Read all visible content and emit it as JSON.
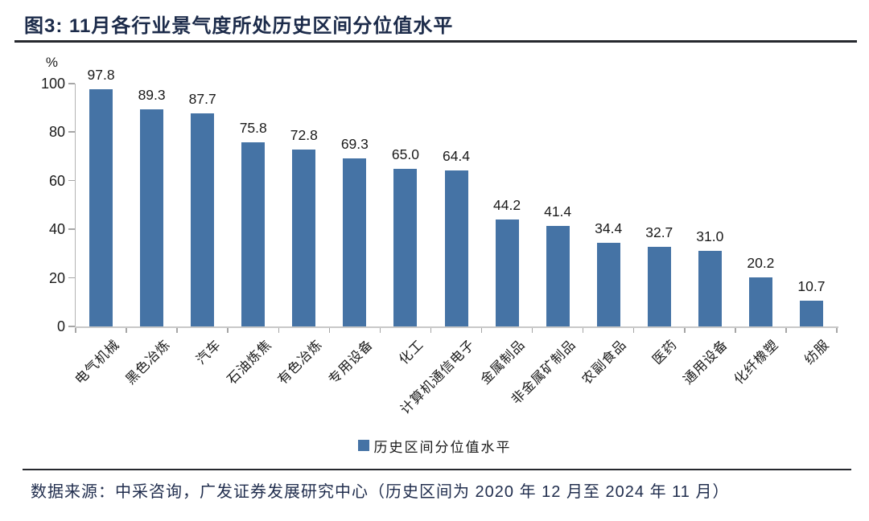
{
  "figure": {
    "title": "图3:  11月各行业景气度所处历史区间分位值水平",
    "source_note": "数据来源：中采咨询，广发证券发展研究中心（历史区间为 2020 年 12 月至 2024 年 11 月）"
  },
  "chart_data": {
    "type": "bar",
    "title": "11月各行业景气度所处历史区间分位值水平",
    "unit": "%",
    "categories": [
      "电气机械",
      "黑色冶炼",
      "汽车",
      "石油炼焦",
      "有色冶炼",
      "专用设备",
      "化工",
      "计算机通信电子",
      "金属制品",
      "非金属矿制品",
      "农副食品",
      "医药",
      "通用设备",
      "化纤橡塑",
      "纺服"
    ],
    "values": [
      97.8,
      89.3,
      87.7,
      75.8,
      72.8,
      69.3,
      65.0,
      64.4,
      44.2,
      41.4,
      34.4,
      32.7,
      31.0,
      20.2,
      10.7
    ],
    "value_label_decimals": 1,
    "xlabel": "",
    "ylabel": "%",
    "ylim": [
      0,
      100
    ],
    "y_ticks": [
      0,
      20,
      40,
      60,
      80,
      100
    ],
    "grid": false,
    "bar_color": "#4573A5",
    "axis_color": "#a6a6a6",
    "legend": [
      {
        "label": "历史区间分位值水平",
        "color": "#4573A5"
      }
    ],
    "legend_position": "bottom-center"
  }
}
